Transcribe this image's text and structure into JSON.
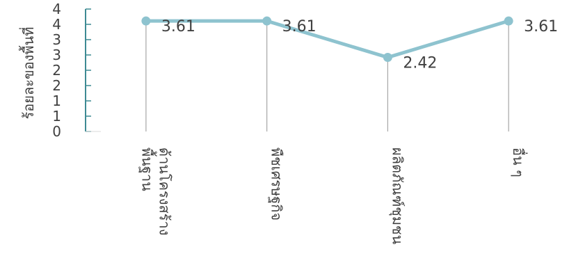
{
  "chart_data": {
    "type": "line",
    "title": "",
    "ylabel": "ร้อยละของพื้นที่",
    "xlabel": "",
    "categories": [
      [
        "ด้านโครงสร้าง",
        "พื้นฐาน"
      ],
      [
        "พืชเศรษฐกิจ"
      ],
      [
        "ผลิตภัณฑ์ชุมชน"
      ],
      [
        "อื่น ๆ"
      ]
    ],
    "values": [
      3.61,
      3.61,
      2.42,
      3.61
    ],
    "data_labels": [
      "3.61",
      "3.61",
      "2.42",
      "3.61"
    ],
    "yticks": [
      "0",
      "1",
      "1",
      "2",
      "2",
      "3",
      "3",
      "4",
      "4"
    ],
    "ylim": [
      0,
      4
    ],
    "grid": false,
    "colors": {
      "line": "#8ec3cf",
      "axis": "#3d8a93",
      "drop": "#a6a6a6",
      "text": "#404040"
    }
  }
}
